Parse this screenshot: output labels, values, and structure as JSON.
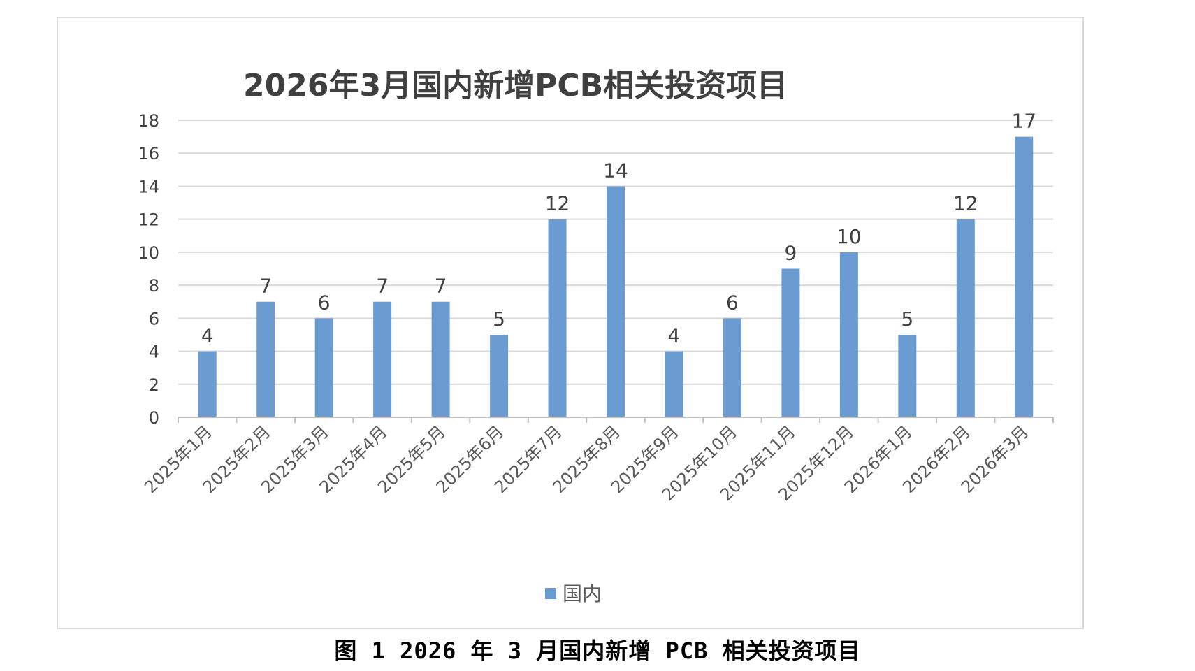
{
  "chart_data": {
    "type": "bar",
    "title": "2026年3月国内新增PCB相关投资项目",
    "xlabel": "",
    "ylabel": "",
    "categories": [
      "2025年1月",
      "2025年2月",
      "2025年3月",
      "2025年4月",
      "2025年5月",
      "2025年6月",
      "2025年7月",
      "2025年8月",
      "2025年9月",
      "2025年10月",
      "2025年11月",
      "2025年12月",
      "2026年1月",
      "2026年2月",
      "2026年3月"
    ],
    "series": [
      {
        "name": "国内",
        "values": [
          4,
          7,
          6,
          7,
          7,
          5,
          12,
          14,
          4,
          6,
          9,
          10,
          5,
          12,
          17
        ],
        "color": "#6a9bd1"
      }
    ],
    "ylim": [
      0,
      18
    ],
    "yticks": [
      0,
      2,
      4,
      6,
      8,
      10,
      12,
      14,
      16,
      18
    ],
    "grid": true,
    "data_labels": true,
    "legend_position": "bottom"
  },
  "caption": "图 1 2026 年 3 月国内新增 PCB 相关投资项目"
}
